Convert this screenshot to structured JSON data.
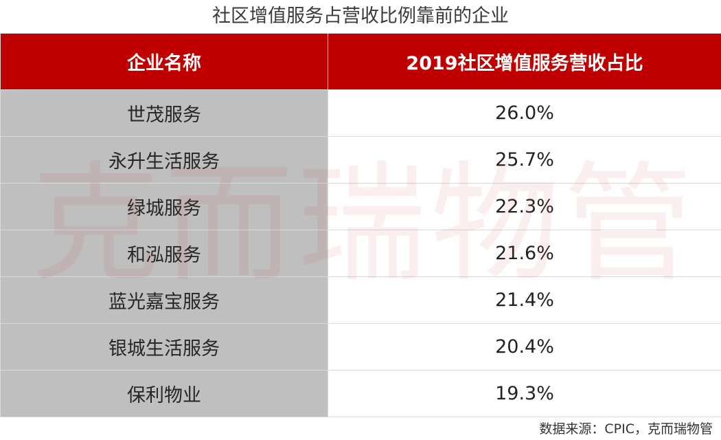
{
  "title": "社区增值服务占营收比例靠前的企业",
  "watermark": "克而瑞物管",
  "source": "数据来源：CPIC，克而瑞物管",
  "colors": {
    "header_bg": "#c00000",
    "name_col_bg": "#bfbfbf"
  },
  "chart_data": {
    "type": "table",
    "columns": [
      "企业名称",
      "2019社区增值服务营收占比"
    ],
    "rows": [
      [
        "世茂服务",
        "26.0%"
      ],
      [
        "永升生活服务",
        "25.7%"
      ],
      [
        "绿城服务",
        "22.3%"
      ],
      [
        "和泓服务",
        "21.6%"
      ],
      [
        "蓝光嘉宝服务",
        "21.4%"
      ],
      [
        "银城生活服务",
        "20.4%"
      ],
      [
        "保利物业",
        "19.3%"
      ]
    ]
  }
}
